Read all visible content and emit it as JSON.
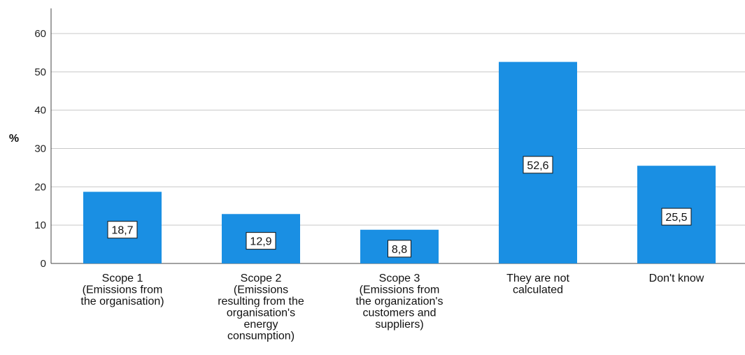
{
  "chart_data": {
    "type": "bar",
    "ylabel": "%",
    "ylim": [
      0,
      65
    ],
    "yticks": [
      0,
      10,
      20,
      30,
      40,
      50,
      60
    ],
    "grid": true,
    "bar_color": "#1a8fe3",
    "categories": [
      [
        "Scope 1",
        "(Emissions from",
        "the organisation)"
      ],
      [
        "Scope 2",
        "(Emissions",
        "resulting from the",
        "organisation's",
        "energy",
        "consumption)"
      ],
      [
        "Scope 3",
        "(Emissions from",
        "the organization's",
        "customers and",
        "suppliers)"
      ],
      [
        "They are not",
        "calculated"
      ],
      [
        "Don't know"
      ]
    ],
    "values": [
      18.7,
      12.9,
      8.8,
      52.6,
      25.5
    ],
    "value_labels": [
      "18,7",
      "12,9",
      "8,8",
      "52,6",
      "25,5"
    ]
  }
}
